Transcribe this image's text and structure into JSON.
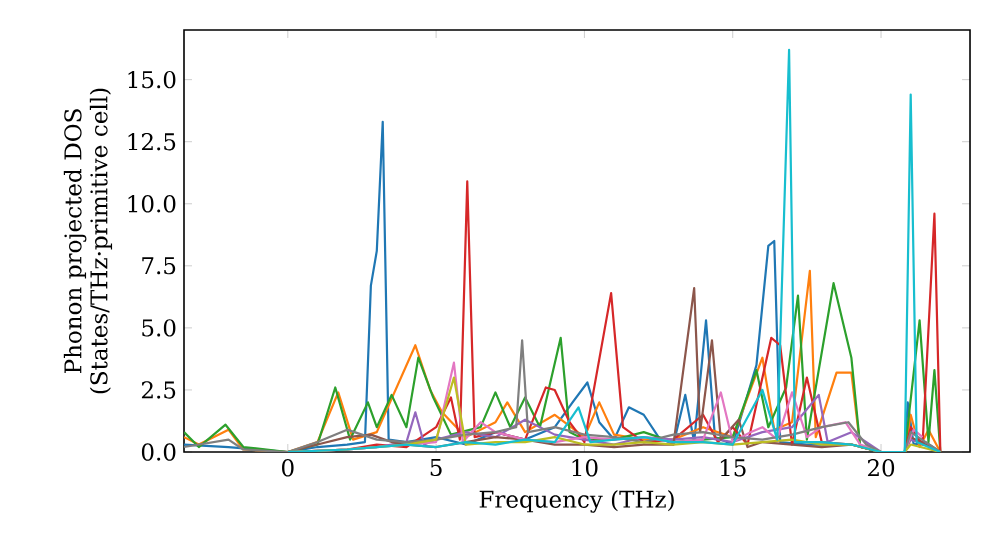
{
  "chart_data": {
    "type": "line",
    "xlabel": "Frequency (THz)",
    "ylabel": "Phonon projected DOS (States/THz·primitive cell)",
    "xlim": [
      -3.5,
      23
    ],
    "ylim": [
      0,
      17
    ],
    "xticks": [
      0,
      5,
      10,
      15,
      20
    ],
    "yticks": [
      {
        "value": 0,
        "label": "0.0"
      },
      {
        "value": 2.5,
        "label": "2.5"
      },
      {
        "value": 5,
        "label": "5.0"
      },
      {
        "value": 7.5,
        "label": "7.5"
      },
      {
        "value": 10,
        "label": "10.0"
      },
      {
        "value": 12.5,
        "label": "12.5"
      },
      {
        "value": 15,
        "label": "15.0"
      }
    ],
    "series": [
      {
        "color": "#1f77b4",
        "x": [
          -3.5,
          -2,
          0,
          1,
          2,
          2.6,
          2.8,
          3.0,
          3.2,
          3.4,
          4,
          5,
          6,
          7,
          8,
          9,
          9.6,
          10.1,
          10.5,
          11,
          11.5,
          12,
          12.5,
          13,
          13.4,
          13.7,
          14.1,
          14.4,
          15,
          15.8,
          16.2,
          16.4,
          16.6,
          17.5,
          19,
          20,
          20.8,
          20.9,
          21.1,
          21.5,
          22
        ],
        "values": [
          0.3,
          0.2,
          0,
          0.2,
          0.3,
          0.4,
          6.7,
          8.1,
          13.3,
          0.5,
          0.4,
          0.6,
          0.3,
          0.8,
          0.5,
          1.0,
          2.0,
          2.8,
          1.2,
          0.5,
          1.8,
          1.5,
          0.6,
          0.3,
          2.3,
          0.4,
          5.3,
          0.6,
          0.3,
          3.5,
          8.3,
          8.5,
          0.4,
          0.3,
          0.3,
          0,
          0,
          2.0,
          0.3,
          0.4,
          0
        ]
      },
      {
        "color": "#ff7f0e",
        "x": [
          -3.5,
          -3,
          -2,
          -1.5,
          0,
          1,
          1.7,
          2.2,
          3,
          4.3,
          4.8,
          5.2,
          6,
          7,
          7.4,
          8,
          9,
          10,
          10.5,
          11,
          12,
          13,
          14,
          15,
          16,
          16.4,
          17,
          17.6,
          17.8,
          18.5,
          19,
          19.3,
          20,
          20.8,
          21,
          21.3,
          21.6,
          22
        ],
        "values": [
          0.6,
          0.3,
          0.9,
          0.1,
          0,
          0.4,
          2.4,
          0.5,
          0.8,
          4.3,
          2.5,
          1.6,
          0.6,
          1.2,
          2.0,
          0.8,
          1.5,
          0.6,
          2.0,
          0.7,
          0.5,
          0.5,
          1.0,
          0.6,
          3.8,
          0.9,
          1.2,
          7.3,
          0.6,
          3.2,
          3.2,
          0.2,
          0,
          0,
          1.5,
          0.2,
          0.9,
          0
        ]
      },
      {
        "color": "#2ca02c",
        "x": [
          -3.5,
          -3,
          -2.1,
          -1.5,
          0,
          1,
          1.6,
          2.1,
          2.7,
          3,
          3.5,
          4,
          4.4,
          4.9,
          5.5,
          6.5,
          7,
          7.5,
          8,
          8.5,
          9.2,
          9.5,
          10,
          11,
          12,
          13,
          14,
          15,
          15.8,
          16.2,
          16.8,
          17.2,
          17.5,
          18.4,
          19.0,
          19.3,
          20,
          20.8,
          21.3,
          21.6,
          21.8,
          22
        ],
        "values": [
          0.8,
          0.2,
          1.1,
          0.2,
          0,
          0.3,
          2.6,
          0.5,
          2.0,
          1.0,
          2.3,
          1.0,
          3.8,
          2.2,
          0.7,
          1.0,
          2.4,
          1.0,
          2.2,
          1.0,
          4.6,
          0.8,
          0.5,
          0.5,
          0.8,
          0.4,
          0.5,
          0.6,
          3.3,
          1.0,
          2.6,
          6.3,
          0.5,
          6.8,
          3.8,
          0.2,
          0,
          0,
          5.3,
          0.4,
          3.3,
          0
        ]
      },
      {
        "color": "#d62728",
        "x": [
          0,
          2,
          3,
          4,
          5,
          5.5,
          5.8,
          6.05,
          6.3,
          7,
          8,
          8.7,
          9,
          9.5,
          10,
          10.9,
          11.3,
          12,
          13,
          14,
          14.5,
          15,
          15.5,
          16.3,
          16.6,
          17,
          17.5,
          18,
          19,
          20,
          20.8,
          21,
          21.4,
          21.8,
          22
        ],
        "values": [
          0,
          0.1,
          0.3,
          0.2,
          1.0,
          2.2,
          0.5,
          10.9,
          0.6,
          0.8,
          0.5,
          2.6,
          2.5,
          1.2,
          0.4,
          6.4,
          1.0,
          0.4,
          0.5,
          1.5,
          0.4,
          1.0,
          0.3,
          4.6,
          4.3,
          0.3,
          3.0,
          0.4,
          0.3,
          0,
          0,
          1.0,
          0.3,
          9.6,
          0
        ]
      },
      {
        "color": "#9467bd",
        "x": [
          0,
          2,
          3,
          4,
          4.3,
          4.6,
          5,
          6,
          7,
          8,
          9,
          10,
          11,
          12,
          13,
          14,
          15,
          16,
          17,
          17.9,
          18.2,
          19,
          20,
          20.8,
          21,
          21.5,
          22
        ],
        "values": [
          0,
          0.1,
          0.2,
          0.4,
          1.6,
          0.3,
          0.5,
          0.8,
          0.6,
          1.3,
          0.7,
          0.5,
          0.3,
          0.6,
          0.5,
          0.6,
          0.4,
          0.8,
          1.0,
          2.3,
          0.4,
          0.8,
          0,
          0,
          0.5,
          0.3,
          0
        ]
      },
      {
        "color": "#8c564b",
        "x": [
          0,
          1,
          2,
          2.8,
          3.5,
          4,
          5,
          6,
          7,
          8,
          9,
          10,
          11,
          12,
          13,
          13.7,
          13.9,
          14.3,
          14.6,
          15.2,
          15.5,
          16,
          17,
          18,
          19,
          20,
          20.8,
          21,
          22
        ],
        "values": [
          0,
          0.3,
          0.6,
          0.7,
          0.4,
          0.3,
          0.2,
          0.4,
          0.6,
          0.5,
          0.3,
          0.3,
          0.2,
          0.3,
          0.3,
          6.6,
          0.8,
          4.5,
          0.5,
          1.3,
          0.2,
          0.4,
          0.3,
          0.2,
          0.3,
          0,
          0,
          0.6,
          0
        ]
      },
      {
        "color": "#e377c2",
        "x": [
          0,
          2,
          3,
          4,
          5,
          5.6,
          5.9,
          6.5,
          7,
          8,
          9,
          10,
          11,
          12,
          13,
          14,
          14.6,
          15,
          15.6,
          16,
          16.5,
          17,
          17.5,
          18,
          18.8,
          19.3,
          20,
          20.8,
          21.1,
          21.4
        ],
        "values": [
          0,
          0.1,
          0.2,
          0.3,
          0.4,
          3.6,
          0.4,
          1.2,
          0.8,
          0.5,
          0.4,
          0.6,
          0.5,
          0.6,
          0.4,
          0.5,
          2.4,
          0.4,
          0.8,
          1.0,
          0.5,
          2.4,
          0.6,
          1.0,
          1.2,
          0.3,
          0,
          0,
          0.9,
          0.6
        ]
      },
      {
        "color": "#7f7f7f",
        "x": [
          -3.5,
          -2,
          -1.5,
          0,
          1,
          2,
          3,
          4,
          5,
          6,
          7,
          7.7,
          7.9,
          8.1,
          9,
          10,
          11,
          12,
          13,
          14,
          15,
          16,
          17,
          18,
          18.9,
          19.5,
          20,
          20.8,
          21,
          21.5,
          22
        ],
        "values": [
          0.2,
          0.5,
          0.1,
          0,
          0.4,
          0.9,
          0.5,
          0.4,
          0.5,
          0.7,
          0.8,
          1.0,
          4.5,
          0.8,
          1.0,
          0.7,
          0.6,
          0.4,
          0.7,
          0.8,
          0.6,
          0.5,
          0.7,
          1.0,
          1.2,
          0.3,
          0,
          0,
          0.8,
          0.4,
          0
        ]
      },
      {
        "color": "#bcbd22",
        "x": [
          0,
          2,
          4,
          5,
          5.6,
          6,
          7,
          8,
          9,
          10,
          11,
          12,
          13,
          14,
          15,
          16,
          17,
          18,
          19,
          20,
          20.8,
          21,
          22
        ],
        "values": [
          0,
          0.1,
          0.3,
          0.5,
          3.0,
          0.3,
          0.4,
          0.4,
          0.6,
          0.3,
          0.3,
          0.4,
          0.3,
          0.4,
          0.3,
          0.4,
          0.5,
          0.3,
          0.3,
          0,
          0,
          0.3,
          0
        ]
      },
      {
        "color": "#17becf",
        "x": [
          0,
          2,
          3,
          4,
          5,
          6,
          7,
          8,
          9,
          9.8,
          10.2,
          11,
          12,
          13,
          14,
          15,
          16,
          16.5,
          16.9,
          17.1,
          18,
          19,
          20,
          20.8,
          21.0,
          21.2,
          22
        ],
        "values": [
          0,
          0.1,
          0.2,
          0.3,
          0.2,
          0.4,
          0.3,
          0.5,
          0.4,
          1.8,
          0.4,
          0.5,
          0.6,
          0.4,
          0.4,
          0.3,
          2.5,
          0.5,
          16.2,
          0.4,
          0.4,
          0.3,
          0,
          0,
          14.4,
          0.4,
          0
        ]
      }
    ]
  }
}
